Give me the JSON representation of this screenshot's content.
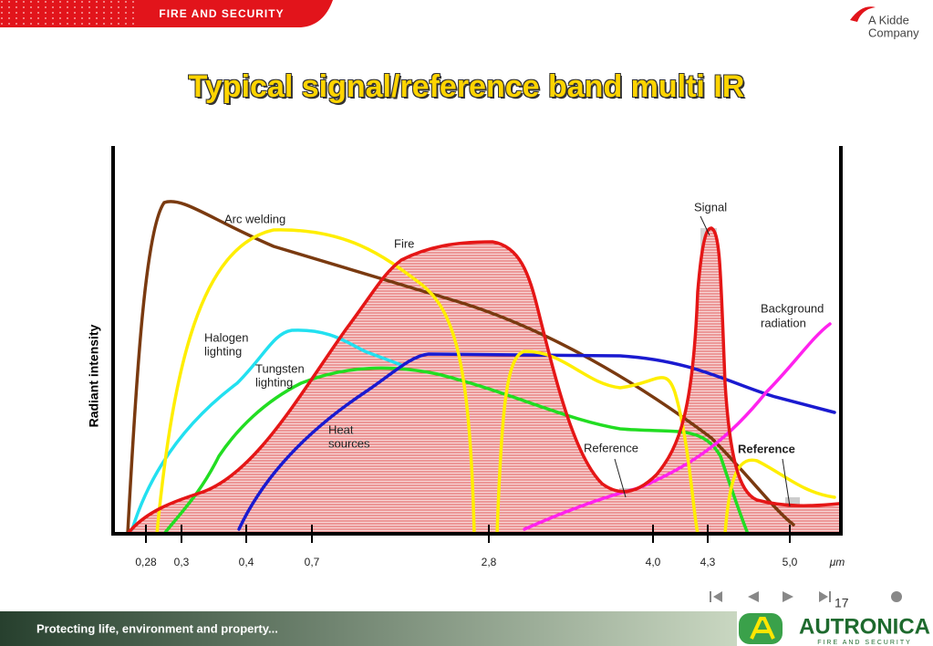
{
  "header": {
    "brand": "FIRE AND SECURITY",
    "partner_line1": "A Kidde",
    "partner_line2": "Company"
  },
  "title": "Typical signal/reference band multi IR",
  "diagram": {
    "y_label": "Radiant intensity",
    "x_ticks": [
      "0,28",
      "0,3",
      "0,4",
      "0,7",
      "2,8",
      "4,0",
      "4,3",
      "5,0"
    ],
    "x_unit": "μm",
    "labels": {
      "arc": "Arc welding",
      "fire": "Fire",
      "halogen1": "Halogen",
      "halogen2": "lighting",
      "tungsten1": "Tungsten",
      "tungsten2": "lighting",
      "heat1": "Heat",
      "heat2": "sources",
      "signal": "Signal",
      "background1": "Background",
      "background2": "radiation",
      "reference1": "Reference",
      "reference2": "Reference"
    }
  },
  "footer": {
    "slogan": "Protecting life, environment and property...",
    "page": "17",
    "logo": "AUTRONICA",
    "logo_sub": "FIRE AND SECURITY"
  }
}
